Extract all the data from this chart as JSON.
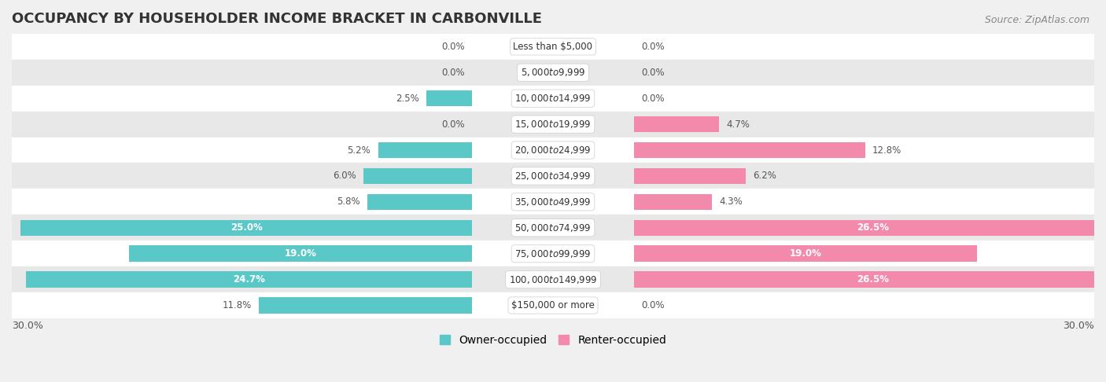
{
  "title": "OCCUPANCY BY HOUSEHOLDER INCOME BRACKET IN CARBONVILLE",
  "source": "Source: ZipAtlas.com",
  "categories": [
    "Less than $5,000",
    "$5,000 to $9,999",
    "$10,000 to $14,999",
    "$15,000 to $19,999",
    "$20,000 to $24,999",
    "$25,000 to $34,999",
    "$35,000 to $49,999",
    "$50,000 to $74,999",
    "$75,000 to $99,999",
    "$100,000 to $149,999",
    "$150,000 or more"
  ],
  "owner_values": [
    0.0,
    0.0,
    2.5,
    0.0,
    5.2,
    6.0,
    5.8,
    25.0,
    19.0,
    24.7,
    11.8
  ],
  "renter_values": [
    0.0,
    0.0,
    0.0,
    4.7,
    12.8,
    6.2,
    4.3,
    26.5,
    19.0,
    26.5,
    0.0
  ],
  "owner_color": "#5bc8c8",
  "renter_color": "#f48aab",
  "background_color": "#f0f0f0",
  "xlim": 30.0,
  "bar_height": 0.62,
  "title_fontsize": 13,
  "source_fontsize": 9,
  "category_fontsize": 8.5,
  "value_label_fontsize": 8.5,
  "legend_fontsize": 10,
  "axis_label_fontsize": 9,
  "row_colors": [
    "#ffffff",
    "#e8e8e8"
  ]
}
